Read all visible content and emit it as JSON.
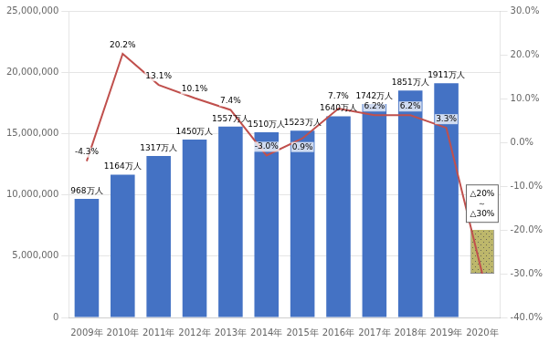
{
  "chart_data": {
    "type": "bar",
    "categories": [
      "2009年",
      "2010年",
      "2011年",
      "2012年",
      "2013年",
      "2014年",
      "2015年",
      "2016年",
      "2017年",
      "2018年",
      "2019年",
      "2020年"
    ],
    "series": [
      {
        "type": "bar",
        "color": "#4472C4",
        "values": [
          9680000,
          11640000,
          13170000,
          14500000,
          15570000,
          15100000,
          15230000,
          16400000,
          17420000,
          18510000,
          19110000,
          null
        ],
        "value_labels": [
          "968万人",
          "1164万人",
          "1317万人",
          "1450万人",
          "1557万人",
          "1510万人",
          "1523万人",
          "1640万人",
          "1742万人",
          "1851万人",
          "1911万人",
          null
        ]
      },
      {
        "type": "bar",
        "axis": "y2",
        "color": "#BDB76B",
        "values": [
          null,
          null,
          null,
          null,
          null,
          null,
          null,
          null,
          null,
          null,
          null,
          [
            -30.0,
            -20.0
          ]
        ]
      },
      {
        "type": "line",
        "axis": "y2",
        "color": "#C0504D",
        "values": [
          -4.3,
          20.2,
          13.1,
          10.1,
          7.4,
          -3.0,
          0.9,
          7.7,
          6.2,
          6.2,
          3.3,
          -30.0
        ],
        "value_labels": [
          "-4.3%",
          "20.2%",
          "13.1%",
          "10.1%",
          "7.4%",
          "-3.0%",
          "0.9%",
          "7.7%",
          "6.2%",
          "6.2%",
          "3.3%",
          null
        ]
      }
    ],
    "ylim": [
      0,
      25000000
    ],
    "yticks": [
      0,
      {
        "value": 5000000,
        "label": "5,000,000"
      },
      {
        "value": 10000000,
        "label": "10,000,000"
      },
      {
        "value": 15000000,
        "label": "15,000,000"
      },
      {
        "value": 20000000,
        "label": "20,000,000"
      },
      {
        "value": 25000000,
        "label": "25,000,000"
      }
    ],
    "y2lim": [
      -40.0,
      30.0
    ],
    "y2ticks": [
      {
        "value": -40,
        "label": "-40.0%"
      },
      {
        "value": -30,
        "label": "-30.0%"
      },
      {
        "value": -20,
        "label": "-20.0%"
      },
      {
        "value": -10,
        "label": "-10.0%"
      },
      {
        "value": 0,
        "label": "0.0%"
      },
      {
        "value": 10,
        "label": "10.0%"
      },
      {
        "value": 20,
        "label": "20.0%"
      },
      {
        "value": 30,
        "label": "30.0%"
      }
    ],
    "grid": true,
    "data_labels": true,
    "annotations": [
      {
        "text": "△20%\n～\n△30%",
        "x": "2020年",
        "y": -14.0,
        "axis": "y2"
      }
    ]
  }
}
